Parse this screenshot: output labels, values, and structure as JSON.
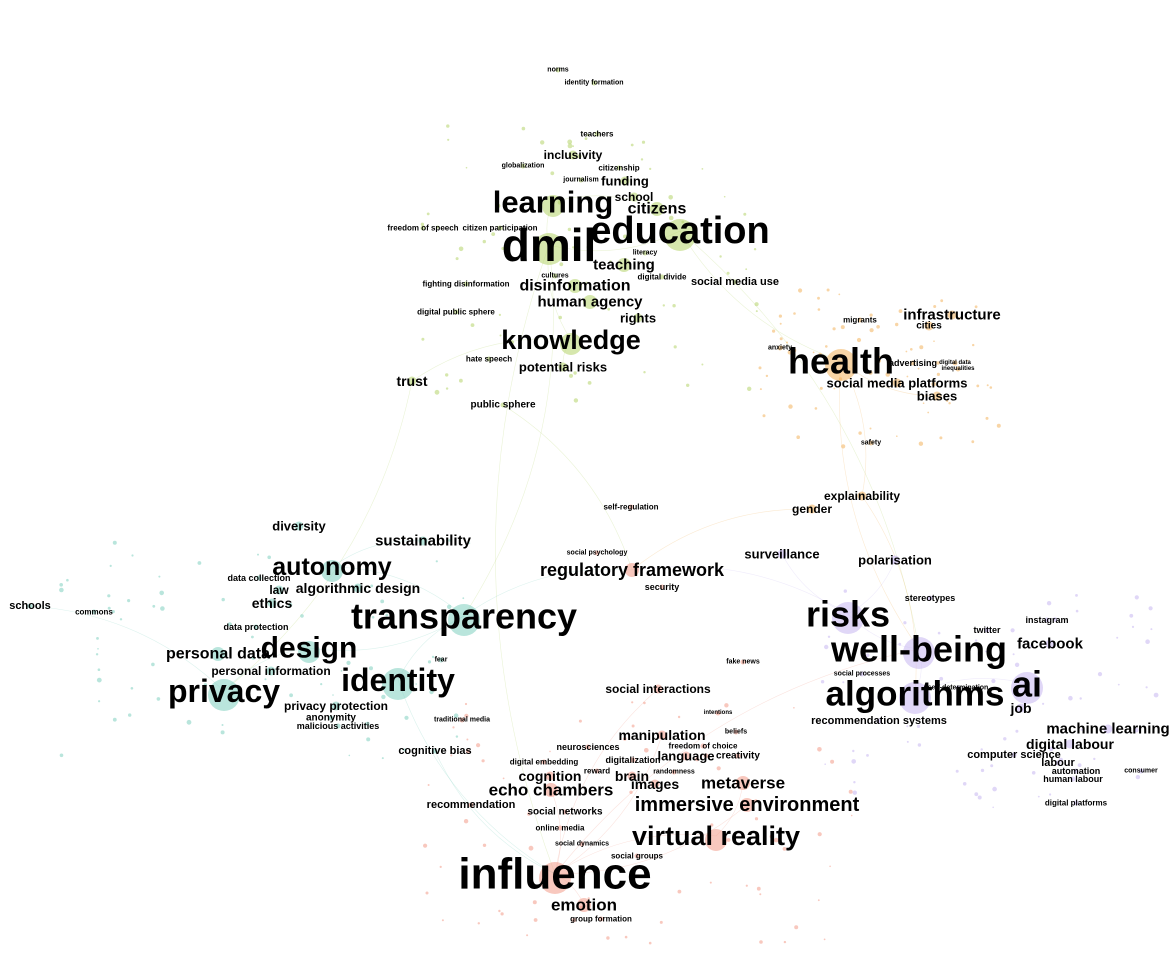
{
  "colors": {
    "media_education": "#b5d46a",
    "health_society": "#f2b35c",
    "privacy_ethics": "#7fcfc0",
    "platforms_ai": "#c7b6f0",
    "influence_vr": "#f29a88"
  },
  "legend": [],
  "clusters": [
    {
      "id": "media_education",
      "color_key": "media_education",
      "labels": [
        {
          "text": "dmil",
          "w": 5
        },
        {
          "text": "education",
          "w": 5
        },
        {
          "text": "learning",
          "w": 4
        },
        {
          "text": "knowledge",
          "w": 4
        },
        {
          "text": "citizens",
          "w": 3
        },
        {
          "text": "disinformation",
          "w": 3
        },
        {
          "text": "human agency",
          "w": 3
        },
        {
          "text": "teaching",
          "w": 3
        },
        {
          "text": "inclusivity",
          "w": 2
        },
        {
          "text": "funding",
          "w": 2
        },
        {
          "text": "school",
          "w": 2
        },
        {
          "text": "rights",
          "w": 2
        },
        {
          "text": "potential risks",
          "w": 2
        },
        {
          "text": "trust",
          "w": 2
        },
        {
          "text": "public sphere",
          "w": 1
        },
        {
          "text": "social media use",
          "w": 1
        },
        {
          "text": "freedom of speech",
          "w": 1
        },
        {
          "text": "citizen participation",
          "w": 1
        },
        {
          "text": "fighting disinformation",
          "w": 1
        },
        {
          "text": "digital public sphere",
          "w": 1
        },
        {
          "text": "hate speech",
          "w": 1
        },
        {
          "text": "citizenship",
          "w": 1
        },
        {
          "text": "teachers",
          "w": 1
        },
        {
          "text": "digital divide",
          "w": 1
        },
        {
          "text": "globalization",
          "w": 1
        },
        {
          "text": "journalism",
          "w": 1
        },
        {
          "text": "literacy",
          "w": 1
        },
        {
          "text": "cultures",
          "w": 1
        },
        {
          "text": "identity formation",
          "w": 1
        },
        {
          "text": "norms",
          "w": 1
        }
      ]
    },
    {
      "id": "health_society",
      "color_key": "health_society",
      "labels": [
        {
          "text": "health",
          "w": 5
        },
        {
          "text": "infrastructure",
          "w": 2
        },
        {
          "text": "cities",
          "w": 2
        },
        {
          "text": "social media platforms",
          "w": 2
        },
        {
          "text": "biases",
          "w": 2
        },
        {
          "text": "explainability",
          "w": 2
        },
        {
          "text": "gender",
          "w": 2
        },
        {
          "text": "advertising",
          "w": 1
        },
        {
          "text": "migrants",
          "w": 1
        },
        {
          "text": "anxiety",
          "w": 1
        },
        {
          "text": "safety",
          "w": 1
        },
        {
          "text": "inequalities",
          "w": 1
        },
        {
          "text": "digital data",
          "w": 1
        }
      ]
    },
    {
      "id": "privacy_ethics",
      "color_key": "privacy_ethics",
      "labels": [
        {
          "text": "transparency",
          "w": 5
        },
        {
          "text": "identity",
          "w": 5
        },
        {
          "text": "privacy",
          "w": 5
        },
        {
          "text": "design",
          "w": 4
        },
        {
          "text": "autonomy",
          "w": 4
        },
        {
          "text": "personal data",
          "w": 3
        },
        {
          "text": "sustainability",
          "w": 2
        },
        {
          "text": "algorithmic design",
          "w": 2
        },
        {
          "text": "diversity",
          "w": 2
        },
        {
          "text": "ethics",
          "w": 2
        },
        {
          "text": "law",
          "w": 2
        },
        {
          "text": "privacy protection",
          "w": 2
        },
        {
          "text": "personal information",
          "w": 2
        },
        {
          "text": "anonymity",
          "w": 1
        },
        {
          "text": "malicious activities",
          "w": 1
        },
        {
          "text": "data collection",
          "w": 1
        },
        {
          "text": "data protection",
          "w": 1
        },
        {
          "text": "schools",
          "w": 1
        },
        {
          "text": "commons",
          "w": 1
        },
        {
          "text": "fear",
          "w": 1
        },
        {
          "text": "cognitive bias",
          "w": 1
        }
      ]
    },
    {
      "id": "platforms_ai",
      "color_key": "platforms_ai",
      "labels": [
        {
          "text": "well-being",
          "w": 5
        },
        {
          "text": "algorithms",
          "w": 5
        },
        {
          "text": "risks",
          "w": 5
        },
        {
          "text": "ai",
          "w": 5
        },
        {
          "text": "machine learning",
          "w": 2
        },
        {
          "text": "facebook",
          "w": 2
        },
        {
          "text": "digital labour",
          "w": 2
        },
        {
          "text": "recommendation systems",
          "w": 1
        },
        {
          "text": "computer science",
          "w": 1
        },
        {
          "text": "job",
          "w": 2
        },
        {
          "text": "labour",
          "w": 1
        },
        {
          "text": "automation",
          "w": 1
        },
        {
          "text": "human labour",
          "w": 1
        },
        {
          "text": "twitter",
          "w": 1
        },
        {
          "text": "instagram",
          "w": 1
        },
        {
          "text": "digital platforms",
          "w": 1
        },
        {
          "text": "polarisation",
          "w": 2
        },
        {
          "text": "stereotypes",
          "w": 1
        },
        {
          "text": "surveillance",
          "w": 2
        },
        {
          "text": "social processes",
          "w": 1
        },
        {
          "text": "self-determination",
          "w": 1
        },
        {
          "text": "consumer",
          "w": 1
        }
      ]
    },
    {
      "id": "influence_vr",
      "color_key": "influence_vr",
      "labels": [
        {
          "text": "influence",
          "w": 5
        },
        {
          "text": "virtual reality",
          "w": 4
        },
        {
          "text": "immersive environment",
          "w": 3
        },
        {
          "text": "regulatory framework",
          "w": 3
        },
        {
          "text": "echo chambers",
          "w": 3
        },
        {
          "text": "metaverse",
          "w": 3
        },
        {
          "text": "emotion",
          "w": 3
        },
        {
          "text": "manipulation",
          "w": 2
        },
        {
          "text": "cognition",
          "w": 2
        },
        {
          "text": "images",
          "w": 2
        },
        {
          "text": "brain",
          "w": 2
        },
        {
          "text": "language",
          "w": 2
        },
        {
          "text": "creativity",
          "w": 1
        },
        {
          "text": "social interactions",
          "w": 2
        },
        {
          "text": "recommendation",
          "w": 1
        },
        {
          "text": "social networks",
          "w": 1
        },
        {
          "text": "online media",
          "w": 1
        },
        {
          "text": "neurosciences",
          "w": 1
        },
        {
          "text": "digitalization",
          "w": 1
        },
        {
          "text": "digital embedding",
          "w": 1
        },
        {
          "text": "reward",
          "w": 1
        },
        {
          "text": "social groups",
          "w": 1
        },
        {
          "text": "group formation",
          "w": 1
        },
        {
          "text": "security",
          "w": 1
        },
        {
          "text": "fake news",
          "w": 1
        },
        {
          "text": "social psychology",
          "w": 1
        },
        {
          "text": "self-regulation",
          "w": 1
        },
        {
          "text": "randomness",
          "w": 1
        },
        {
          "text": "freedom of choice",
          "w": 1
        },
        {
          "text": "social dynamics",
          "w": 1
        },
        {
          "text": "traditional media",
          "w": 1
        },
        {
          "text": "beliefs",
          "w": 1
        },
        {
          "text": "intentions",
          "w": 1
        }
      ]
    }
  ],
  "edges": [
    [
      "education",
      "dmil"
    ],
    [
      "learning",
      "dmil"
    ],
    [
      "knowledge",
      "dmil"
    ],
    [
      "education",
      "health"
    ],
    [
      "dmil",
      "transparency"
    ],
    [
      "knowledge",
      "trust"
    ],
    [
      "trust",
      "privacy"
    ],
    [
      "dmil",
      "influence"
    ],
    [
      "education",
      "well-being"
    ],
    [
      "health",
      "well-being"
    ],
    [
      "health",
      "explainability"
    ],
    [
      "gender",
      "regulatory framework"
    ],
    [
      "transparency",
      "regulatory framework"
    ],
    [
      "transparency",
      "identity"
    ],
    [
      "transparency",
      "design"
    ],
    [
      "design",
      "privacy"
    ],
    [
      "autonomy",
      "transparency"
    ],
    [
      "identity",
      "influence"
    ],
    [
      "influence",
      "virtual reality"
    ],
    [
      "influence",
      "immersive environment"
    ],
    [
      "well-being",
      "algorithms"
    ],
    [
      "risks",
      "well-being"
    ],
    [
      "algorithms",
      "ai"
    ],
    [
      "risks",
      "regulatory framework"
    ],
    [
      "influence",
      "well-being"
    ],
    [
      "privacy",
      "schools"
    ],
    [
      "public sphere",
      "regulatory framework"
    ],
    [
      "social interactions",
      "influence"
    ],
    [
      "manipulation",
      "influence"
    ],
    [
      "surveillance",
      "risks"
    ],
    [
      "echo chambers",
      "influence"
    ],
    [
      "health",
      "biases"
    ],
    [
      "learning",
      "citizens"
    ],
    [
      "knowledge",
      "potential risks"
    ],
    [
      "metaverse",
      "virtual reality"
    ],
    [
      "cognitive bias",
      "influence"
    ],
    [
      "explainability",
      "algorithms"
    ],
    [
      "sustainability",
      "autonomy"
    ],
    [
      "polarisation",
      "risks"
    ],
    [
      "emotion",
      "influence"
    ]
  ]
}
